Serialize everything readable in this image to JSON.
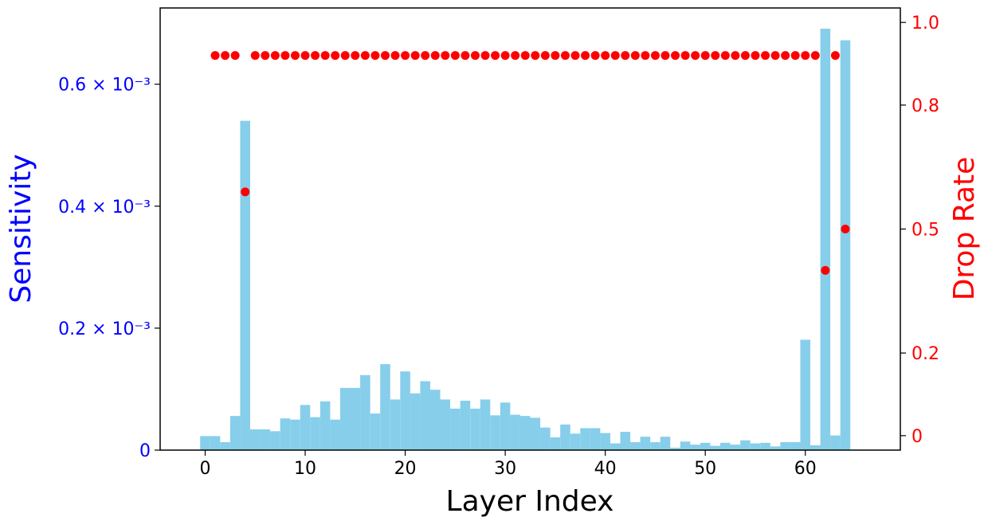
{
  "chart_data": {
    "type": "bar",
    "x_label": "Layer Index",
    "y_left_label": "Sensitivity",
    "y_right_label": "Drop Rate",
    "colors": {
      "bar": "#87ceeb",
      "points": "#ff0000",
      "left_axis": "#0000ff",
      "right_axis": "#ff0000",
      "frame": "#000000"
    },
    "x_range": [
      -4.5,
      69.5
    ],
    "y_left_range": [
      0,
      0.000725
    ],
    "y_right_range": [
      -0.035,
      1.035
    ],
    "x_ticks": [
      {
        "value": 0,
        "label": "0"
      },
      {
        "value": 10,
        "label": "10"
      },
      {
        "value": 20,
        "label": "20"
      },
      {
        "value": 30,
        "label": "30"
      },
      {
        "value": 40,
        "label": "40"
      },
      {
        "value": 50,
        "label": "50"
      },
      {
        "value": 60,
        "label": "60"
      }
    ],
    "y_left_ticks": [
      {
        "value": 0,
        "label": "0"
      },
      {
        "value": 0.0002,
        "label": "0.2 × 10⁻³"
      },
      {
        "value": 0.0004,
        "label": "0.4 × 10⁻³"
      },
      {
        "value": 0.0006,
        "label": "0.6 × 10⁻³"
      }
    ],
    "y_right_ticks": [
      {
        "value": 0,
        "label": "0"
      },
      {
        "value": 0.2,
        "label": "0.2"
      },
      {
        "value": 0.5,
        "label": "0.5"
      },
      {
        "value": 0.8,
        "label": "0.8"
      },
      {
        "value": 1.0,
        "label": "1.0"
      }
    ],
    "sensitivity": {
      "name": "Sensitivity",
      "x": [
        0,
        1,
        2,
        3,
        4,
        5,
        6,
        7,
        8,
        9,
        10,
        11,
        12,
        13,
        14,
        15,
        16,
        17,
        18,
        19,
        20,
        21,
        22,
        23,
        24,
        25,
        26,
        27,
        28,
        29,
        30,
        31,
        32,
        33,
        34,
        35,
        36,
        37,
        38,
        39,
        40,
        41,
        42,
        43,
        44,
        45,
        46,
        47,
        48,
        49,
        50,
        51,
        52,
        53,
        54,
        55,
        56,
        57,
        58,
        59,
        60,
        61,
        62,
        63,
        64
      ],
      "values": [
        2.3e-05,
        2.3e-05,
        1.3e-05,
        5.6e-05,
        0.00054,
        3.4e-05,
        3.4e-05,
        3.1e-05,
        5.2e-05,
        5e-05,
        7.4e-05,
        5.4e-05,
        8e-05,
        5e-05,
        0.000102,
        0.000102,
        0.000123,
        6e-05,
        0.000141,
        8.3e-05,
        0.000129,
        9.3e-05,
        0.000113,
        9.9e-05,
        8.3e-05,
        6.8e-05,
        8.1e-05,
        6.8e-05,
        8.3e-05,
        5.7e-05,
        7.8e-05,
        5.8e-05,
        5.6e-05,
        5.3e-05,
        3.7e-05,
        2.1e-05,
        4.2e-05,
        2.7e-05,
        3.6e-05,
        3.6e-05,
        2.8e-05,
        1.1e-05,
        3e-05,
        1.3e-05,
        2.2e-05,
        1.3e-05,
        2.2e-05,
        4e-06,
        1.4e-05,
        9e-06,
        1.2e-05,
        7e-06,
        1.2e-05,
        9e-06,
        1.6e-05,
        1.1e-05,
        1.2e-05,
        6e-06,
        1.3e-05,
        1.3e-05,
        0.000181,
        8e-06,
        0.000691,
        2.4e-05,
        0.000672
      ]
    },
    "drop_rate": {
      "name": "Drop Rate",
      "x": [
        1,
        2,
        3,
        4,
        5,
        6,
        7,
        8,
        9,
        10,
        11,
        12,
        13,
        14,
        15,
        16,
        17,
        18,
        19,
        20,
        21,
        22,
        23,
        24,
        25,
        26,
        27,
        28,
        29,
        30,
        31,
        32,
        33,
        34,
        35,
        36,
        37,
        38,
        39,
        40,
        41,
        42,
        43,
        44,
        45,
        46,
        47,
        48,
        49,
        50,
        51,
        52,
        53,
        54,
        55,
        56,
        57,
        58,
        59,
        60,
        61,
        62,
        63,
        64
      ],
      "values": [
        0.92,
        0.92,
        0.92,
        0.59,
        0.92,
        0.92,
        0.92,
        0.92,
        0.92,
        0.92,
        0.92,
        0.92,
        0.92,
        0.92,
        0.92,
        0.92,
        0.92,
        0.92,
        0.92,
        0.92,
        0.92,
        0.92,
        0.92,
        0.92,
        0.92,
        0.92,
        0.92,
        0.92,
        0.92,
        0.92,
        0.92,
        0.92,
        0.92,
        0.92,
        0.92,
        0.92,
        0.92,
        0.92,
        0.92,
        0.92,
        0.92,
        0.92,
        0.92,
        0.92,
        0.92,
        0.92,
        0.92,
        0.92,
        0.92,
        0.92,
        0.92,
        0.92,
        0.92,
        0.92,
        0.92,
        0.92,
        0.92,
        0.92,
        0.92,
        0.92,
        0.92,
        0.4,
        0.92,
        0.5
      ]
    }
  }
}
